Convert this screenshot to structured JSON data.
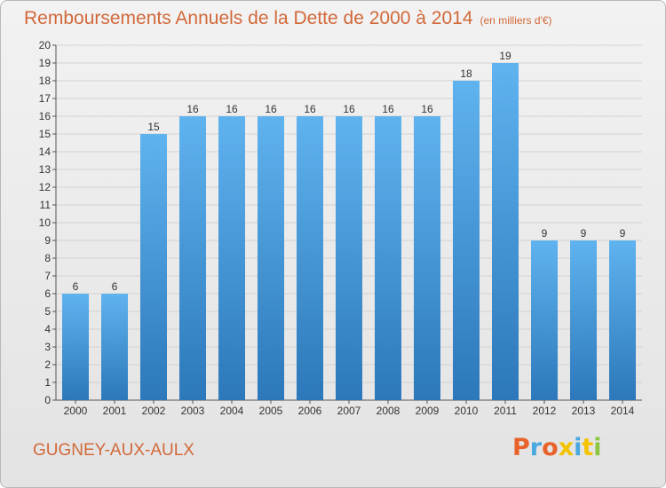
{
  "header": {
    "title": "Remboursements Annuels de la Dette de 2000 à 2014",
    "unit": "(en milliers d'€)"
  },
  "footer": {
    "commune": "GUGNEY-AUX-AULX",
    "logo_text": "Proxiti"
  },
  "colors": {
    "bar_top": "#5fb3ef",
    "bar_bottom": "#2c78ba",
    "title": "#d2693a",
    "logo_letters": [
      "#e8632b",
      "#4aa8e0",
      "#e8632b",
      "#f3c300",
      "#4aa8e0",
      "#f3c300",
      "#8dc63f"
    ]
  },
  "chart_data": {
    "type": "bar",
    "title": "Remboursements Annuels de la Dette de 2000 à 2014",
    "unit": "(en milliers d'€)",
    "categories": [
      "2000",
      "2001",
      "2002",
      "2003",
      "2004",
      "2005",
      "2006",
      "2007",
      "2008",
      "2009",
      "2010",
      "2011",
      "2012",
      "2013",
      "2014"
    ],
    "values": [
      6,
      6,
      15,
      16,
      16,
      16,
      16,
      16,
      16,
      16,
      18,
      19,
      9,
      9,
      9
    ],
    "ylim": [
      0,
      20
    ],
    "yticks": [
      0,
      1,
      2,
      3,
      4,
      5,
      6,
      7,
      8,
      9,
      10,
      11,
      12,
      13,
      14,
      15,
      16,
      17,
      18,
      19,
      20
    ],
    "grid": true,
    "data_labels": true
  }
}
